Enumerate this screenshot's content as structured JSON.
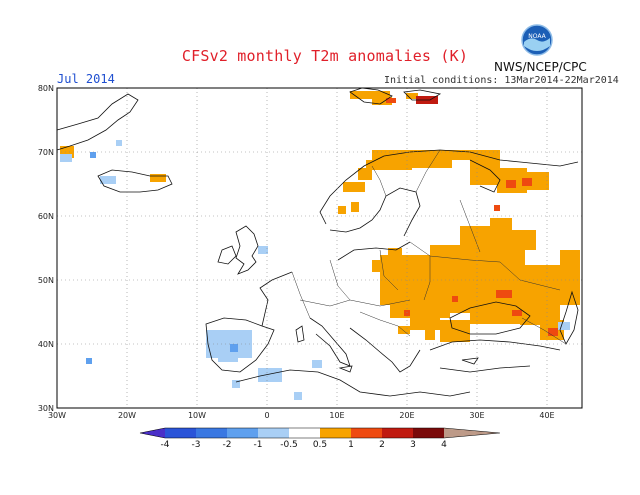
{
  "header": {
    "title": "CFSv2 monthly T2m anomalies (K)",
    "period": "Jul 2014",
    "initial_conditions": "Initial conditions: 13Mar2014-22Mar2014",
    "agency": "NWS/NCEP/CPC",
    "logo_text": "NOAA"
  },
  "map": {
    "lon_ticks": [
      "30W",
      "20W",
      "10W",
      "0",
      "10E",
      "20E",
      "30E",
      "40E"
    ],
    "lat_ticks": [
      "30N",
      "40N",
      "50N",
      "60N",
      "70N",
      "80N"
    ]
  },
  "colorbar": {
    "levels": [
      "-4",
      "-3",
      "-2",
      "-1",
      "-0.5",
      "0.5",
      "1",
      "2",
      "3",
      "4"
    ],
    "colors": [
      "#4a2fc8",
      "#2a54d8",
      "#3a78e2",
      "#5fa0ee",
      "#a9cff5",
      "#ffffff",
      "#f7a300",
      "#ee4a10",
      "#c01a10",
      "#7a0a0a",
      "#bd9a88"
    ]
  }
}
